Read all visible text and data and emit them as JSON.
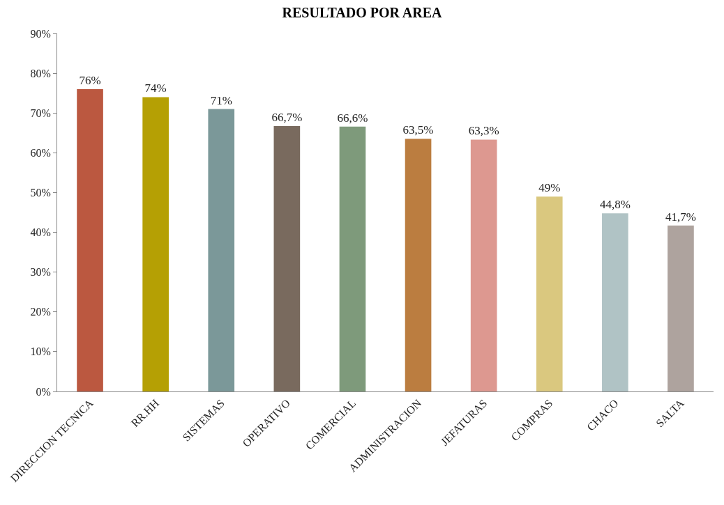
{
  "chart_data": {
    "type": "bar",
    "title": "RESULTADO POR AREA",
    "categories": [
      "DIRECCION TECNICA",
      "RR.HH",
      "SISTEMAS",
      "OPERATIVO",
      "COMERCIAL",
      "ADMINISTRACION",
      "JEFATURAS",
      "COMPRAS",
      "CHACO",
      "SALTA"
    ],
    "values": [
      76,
      74,
      71,
      66.7,
      66.6,
      63.5,
      63.3,
      49,
      44.8,
      41.7
    ],
    "value_labels": [
      "76%",
      "74%",
      "71%",
      "66,7%",
      "66,6%",
      "63,5%",
      "63,3%",
      "49%",
      "44,8%",
      "41,7%"
    ],
    "colors": [
      "#bb5840",
      "#b5a004",
      "#7b9899",
      "#796a5e",
      "#7e9a7b",
      "#bb7d40",
      "#dd9890",
      "#dac87f",
      "#b0c3c5",
      "#aea39e"
    ],
    "ylim": [
      0,
      90
    ],
    "yticks": [
      {
        "value": 0,
        "label": "0%"
      },
      {
        "value": 10,
        "label": "10%"
      },
      {
        "value": 20,
        "label": "20%"
      },
      {
        "value": 30,
        "label": "30%"
      },
      {
        "value": 40,
        "label": "40%"
      },
      {
        "value": 50,
        "label": "50%"
      },
      {
        "value": 60,
        "label": "60%"
      },
      {
        "value": 70,
        "label": "70%"
      },
      {
        "value": 80,
        "label": "80%"
      },
      {
        "value": 90,
        "label": "90%"
      }
    ],
    "grid": false
  }
}
